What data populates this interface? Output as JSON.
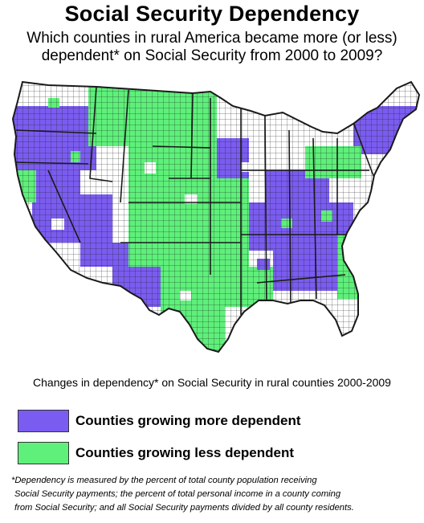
{
  "header": {
    "title": "Social Security Dependency",
    "subtitle_line1": "Which counties in rural America became more (or less)",
    "subtitle_line2": "dependent* on Social Security from 2000 to 2009?"
  },
  "colors": {
    "more_dependent": "#7b5cf0",
    "less_dependent": "#5ef07a",
    "no_data": "#ffffff",
    "border": "#1a1a1a"
  },
  "legend": {
    "title": "Changes in dependency* on Social Security in rural counties 2000-2009",
    "items": [
      {
        "label": "Counties growing more dependent",
        "color": "#7b5cf0"
      },
      {
        "label": "Counties growing less dependent",
        "color": "#5ef07a"
      }
    ]
  },
  "footnote": {
    "line1": "*Dependency is measured by the percent of total county population receiving",
    "line2": "Social Security payments; the percent of total personal income in a county coming",
    "line3": "from Social Security; and all Social Security payments divided by all county residents."
  }
}
